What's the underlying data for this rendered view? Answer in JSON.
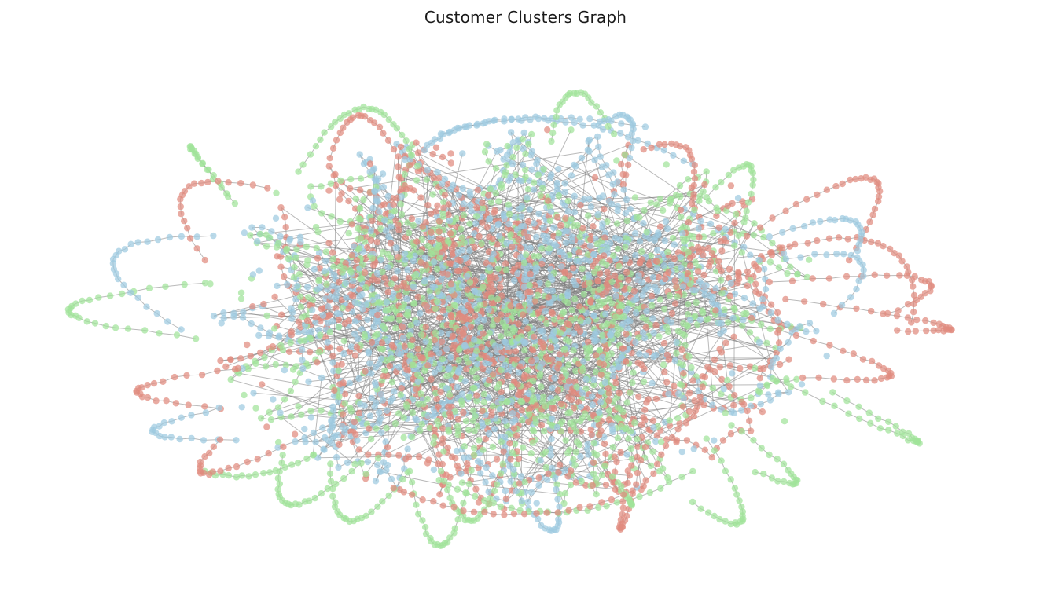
{
  "chart_data": {
    "type": "network",
    "title": "Customer Clusters Graph",
    "layout": "force-directed",
    "axes": "off",
    "legend": "none",
    "clusters": [
      {
        "id": 0,
        "color": "#E08A7E"
      },
      {
        "id": 1,
        "color": "#9ECAE1"
      },
      {
        "id": 2,
        "color": "#A1E39A"
      }
    ],
    "edge_color": "#808080",
    "node_count_approx": 3000
  }
}
